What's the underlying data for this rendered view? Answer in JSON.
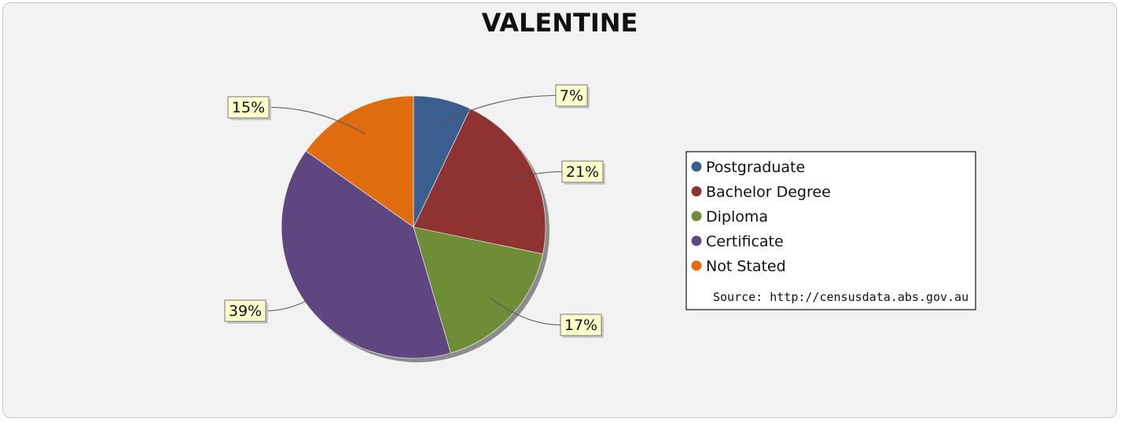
{
  "chart_data": {
    "type": "pie",
    "title": "VALENTINE",
    "categories": [
      "Postgraduate",
      "Bachelor Degree",
      "Diploma",
      "Certificate",
      "Not Stated"
    ],
    "values": [
      7,
      21,
      17,
      39,
      15
    ],
    "value_labels": [
      "7%",
      "21%",
      "17%",
      "39%",
      "15%"
    ],
    "colors": [
      "#3b5e8e",
      "#8e3232",
      "#6e8d36",
      "#5e4780",
      "#e06c10"
    ],
    "legend": {
      "placement": "right",
      "entries": [
        "Postgraduate",
        "Bachelor Degree",
        "Diploma",
        "Certificate",
        "Not Stated"
      ],
      "source": "Source: http://censusdata.abs.gov.au"
    }
  }
}
